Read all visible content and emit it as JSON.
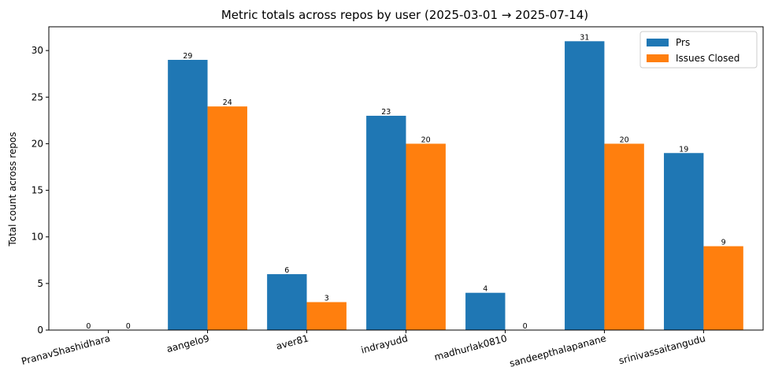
{
  "chart_data": {
    "type": "bar",
    "title": "Metric totals across repos by user (2025-03-01 → 2025-07-14)",
    "xlabel": "",
    "ylabel": "Total count across repos",
    "ylim": [
      0,
      32.55
    ],
    "yticks": [
      0,
      5,
      10,
      15,
      20,
      25,
      30
    ],
    "grid": false,
    "legend_position": "top-right",
    "categories": [
      "PranavShashidhara",
      "aangelo9",
      "aver81",
      "indrayudd",
      "madhurlak0810",
      "sandeepthalapanane",
      "srinivassaitangudu"
    ],
    "series": [
      {
        "name": "Prs",
        "color": "#1f77b4",
        "values": [
          0,
          29,
          6,
          23,
          4,
          31,
          19
        ]
      },
      {
        "name": "Issues Closed",
        "color": "#ff7f0e",
        "values": [
          0,
          24,
          3,
          20,
          0,
          20,
          9
        ]
      }
    ]
  }
}
